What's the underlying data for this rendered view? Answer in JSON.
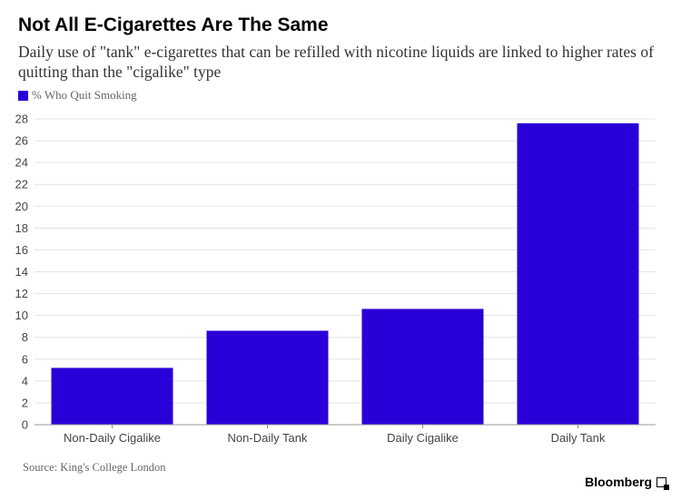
{
  "chart_data": {
    "type": "bar",
    "title": "Not All E-Cigarettes Are The Same",
    "subtitle": "Daily use of \"tank\" e-cigarettes that can be refilled with nicotine liquids are linked to higher rates of quitting than the \"cigalike\" type",
    "categories": [
      "Non-Daily Cigalike",
      "Non-Daily Tank",
      "Daily Cigalike",
      "Daily Tank"
    ],
    "series": [
      {
        "name": "% Who Quit Smoking",
        "values": [
          5.2,
          8.6,
          10.6,
          27.6
        ]
      }
    ],
    "yticks": [
      "0",
      "2",
      "4",
      "6",
      "8",
      "10",
      "12",
      "14",
      "16",
      "18",
      "20",
      "22",
      "24",
      "26",
      "28"
    ],
    "ylim": [
      0,
      28
    ],
    "grid": true,
    "legend_position": "top-left",
    "bar_color": "#2a00d8",
    "source": "Source: King's College London"
  },
  "brand": {
    "name": "Bloomberg",
    "icon": "bloomberg-corner-icon"
  }
}
